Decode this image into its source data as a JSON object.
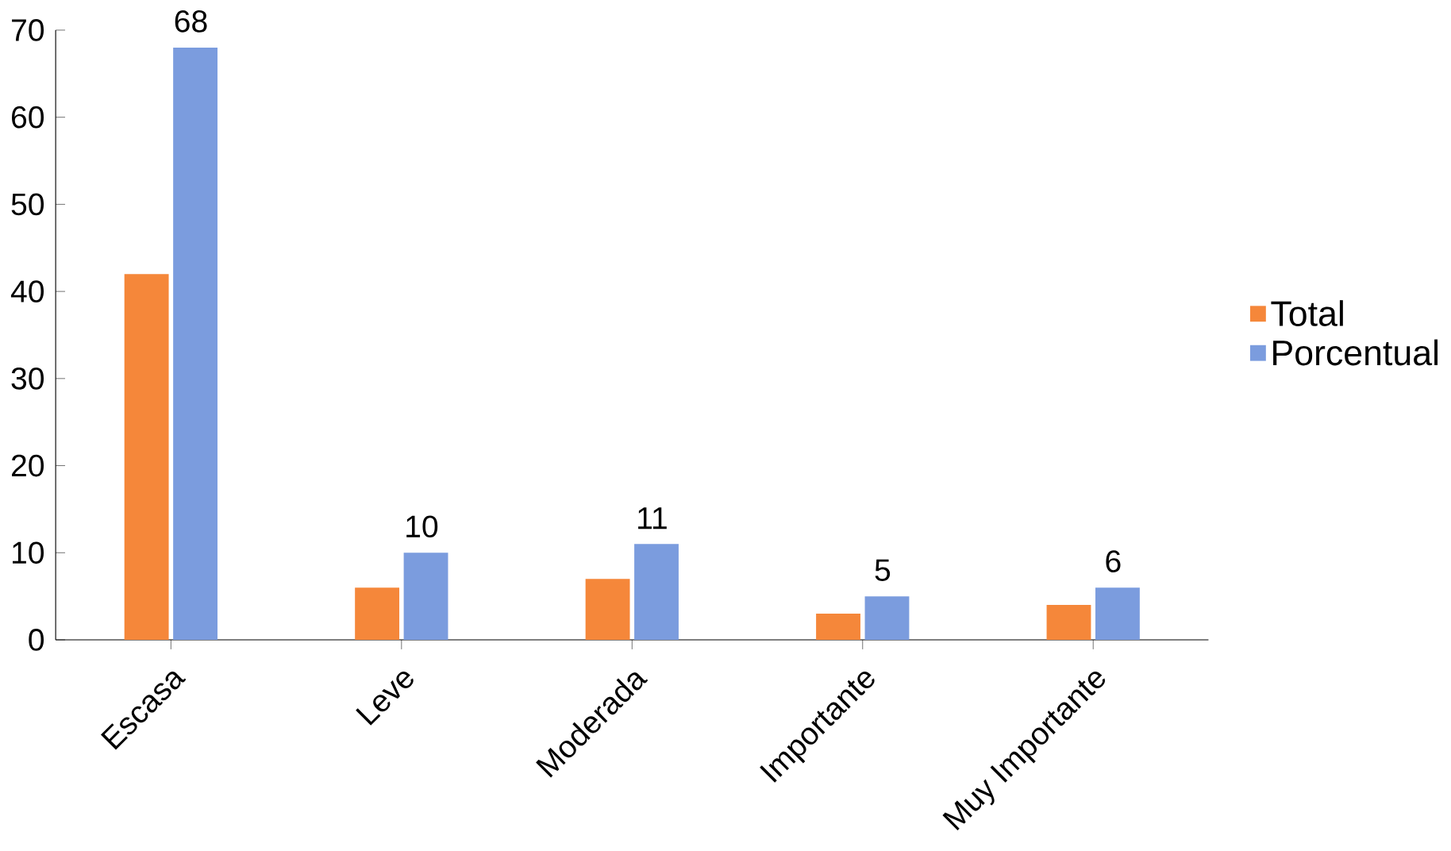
{
  "chart_data": {
    "type": "bar",
    "categories": [
      "Escasa",
      "Leve",
      "Moderada",
      "Importante",
      "Muy Importante"
    ],
    "series": [
      {
        "name": "Total",
        "color": "#f5873a",
        "values": [
          42,
          6,
          7,
          3,
          4
        ]
      },
      {
        "name": "Porcentual",
        "color": "#7b9cde",
        "values": [
          68,
          10,
          11,
          5,
          6
        ],
        "value_labels": [
          "68",
          "10",
          "11",
          "5",
          "6"
        ]
      }
    ],
    "ylim": [
      0,
      70
    ],
    "yticks": [
      0,
      10,
      20,
      30,
      40,
      50,
      60,
      70
    ],
    "grid": false,
    "legend": "right"
  }
}
